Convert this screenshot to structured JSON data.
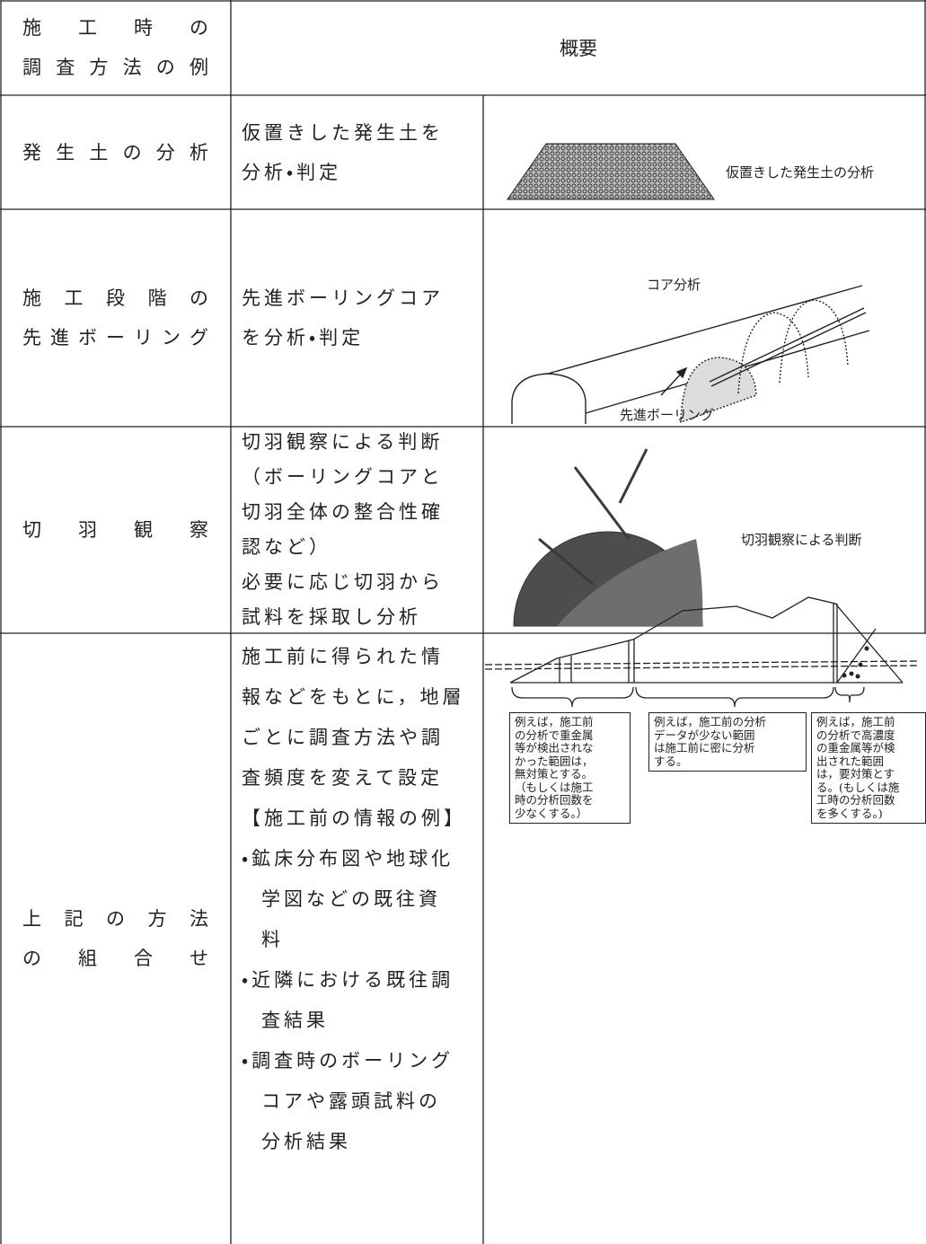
{
  "header": {
    "method_lines": [
      "施工時の",
      "調査方法の例"
    ],
    "overview": "概要"
  },
  "rows": [
    {
      "method_lines": [
        "発生土の分析"
      ],
      "description_lines": [
        "仮置きした発生土を",
        "分析・判定"
      ],
      "figure_labels": [
        "仮置きした発生土の分析"
      ]
    },
    {
      "method_lines": [
        "施工段階の",
        "先進ボーリング"
      ],
      "description_lines": [
        "先進ボーリングコア",
        "を分析・判定"
      ],
      "figure_labels": [
        "コア分析",
        "先進ボーリング"
      ]
    },
    {
      "method_lines": [
        "切羽観察"
      ],
      "description_lines": [
        "切羽観察による判断",
        "（ボーリングコアと",
        "切羽全体の整合性確",
        "認など）",
        "必要に応じ切羽から",
        "試料を採取し分析"
      ],
      "figure_labels": [
        "切羽観察による判断"
      ]
    },
    {
      "method_lines": [
        "上記の方法",
        "の組合せ"
      ],
      "description_lines": [
        "施工前に得られた情",
        "報などをもとに，地層",
        "ごとに調査方法や調",
        "査頻度を変えて設定"
      ],
      "info_heading": "【施工前の情報の例】",
      "info_bullets": [
        [
          "・鉱床分布図や地球化",
          "学図などの既往資",
          "料"
        ],
        [
          "・近隣における既往調",
          "査結果"
        ],
        [
          "・調査時のボーリング",
          "コアや露頭試料の",
          "分析結果"
        ]
      ],
      "figure_notes": [
        [
          "例えば，施工前",
          "の分析で重金属",
          "等が検出されな",
          "かった範囲は，",
          "無対策とする。",
          "（もしくは施工",
          "時の分析回数を",
          "少なくする。）"
        ],
        [
          "例えば，施工前の分析",
          "データが少ない範囲",
          "は施工前に密に分析",
          "する。"
        ],
        [
          "例えば，施工前",
          "の分析で高濃度",
          "の重金属等が検",
          "出された範囲",
          "は，要対策とす",
          "る。(もしくは施",
          "工時の分析回数",
          "を多くする。)"
        ]
      ]
    }
  ]
}
